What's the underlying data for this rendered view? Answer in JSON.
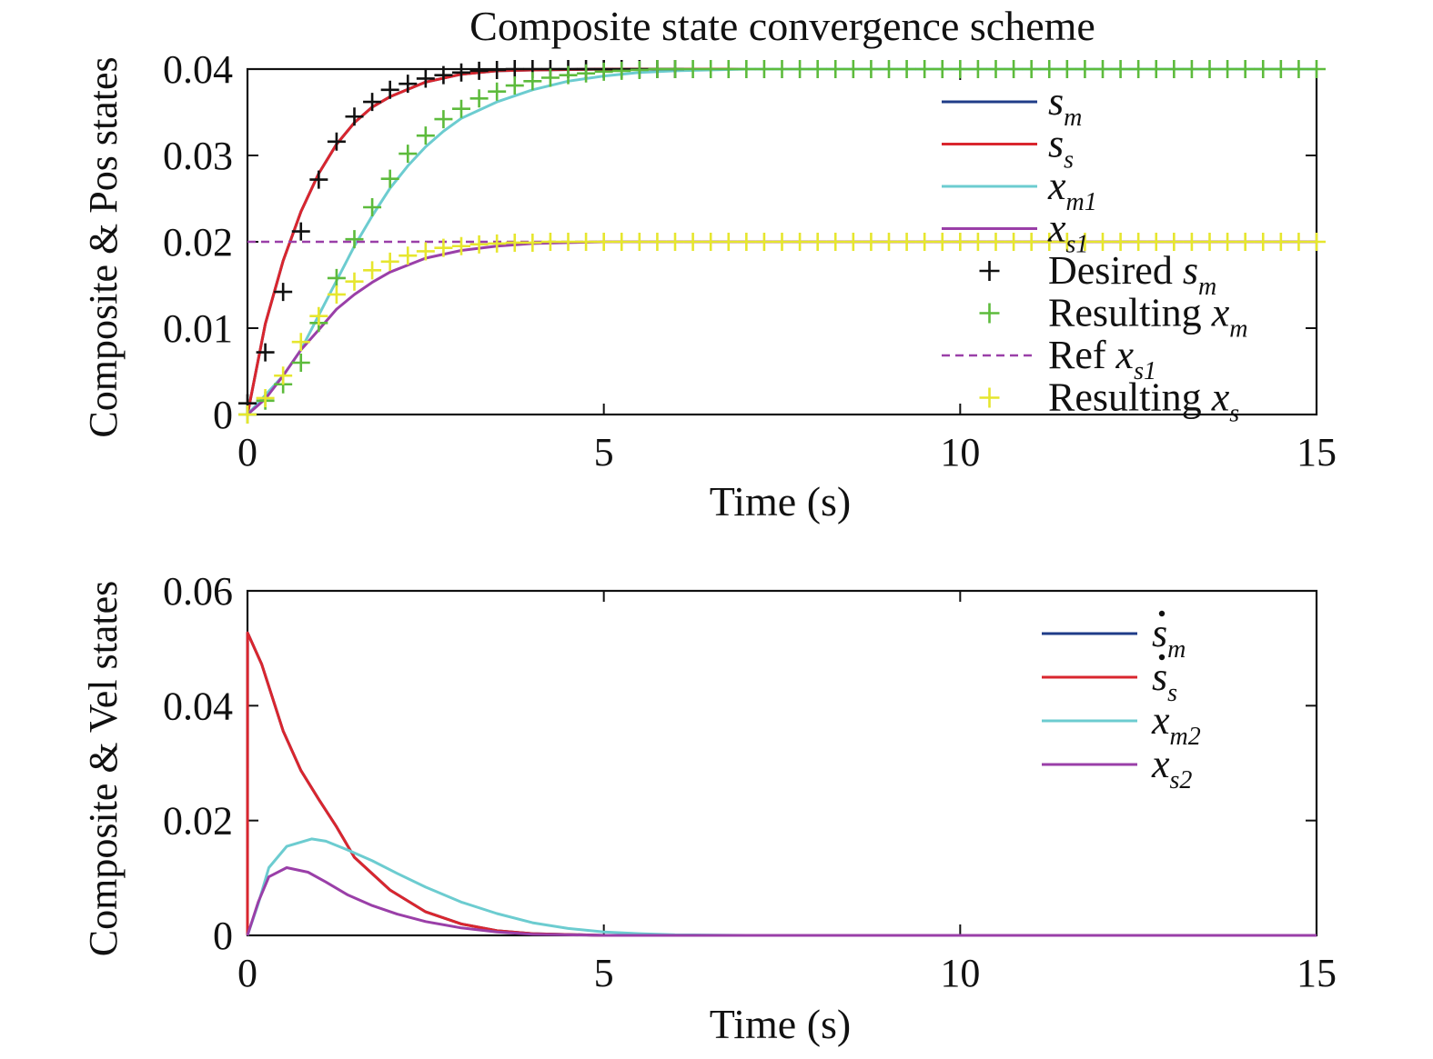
{
  "figure": {
    "title": "Composite state convergence scheme"
  },
  "chart_data": [
    {
      "type": "line",
      "title": "Composite state convergence scheme",
      "xlabel": "Time (s)",
      "ylabel": "Composite & Pos states",
      "xlim": [
        0,
        15
      ],
      "ylim": [
        0,
        0.04
      ],
      "xticks": [
        0,
        5,
        10,
        15
      ],
      "yticks": [
        0,
        0.01,
        0.02,
        0.03,
        0.04
      ],
      "xtick_labels": [
        "0",
        "5",
        "10",
        "15"
      ],
      "ytick_labels": [
        "0",
        "0.01",
        "0.02",
        "0.03",
        "0.04"
      ],
      "grid": false,
      "legend_position": "top-right",
      "series": [
        {
          "name": "s_m",
          "style": "line",
          "color": "#1f3c88",
          "x": [
            0,
            0.25,
            0.5,
            0.75,
            1,
            1.25,
            1.5,
            1.75,
            2,
            2.5,
            3,
            3.5,
            4,
            5,
            6,
            8,
            10,
            12,
            15
          ],
          "y": [
            0,
            0.0105,
            0.0178,
            0.0235,
            0.0279,
            0.0313,
            0.0338,
            0.0356,
            0.0368,
            0.0385,
            0.0394,
            0.0398,
            0.0399,
            0.04,
            0.04,
            0.04,
            0.04,
            0.04,
            0.04
          ]
        },
        {
          "name": "s_s",
          "style": "line",
          "color": "#d9262e",
          "x": [
            0,
            0.25,
            0.5,
            0.75,
            1,
            1.25,
            1.5,
            1.75,
            2,
            2.5,
            3,
            3.5,
            4,
            5,
            6,
            8,
            10,
            12,
            15
          ],
          "y": [
            0,
            0.0105,
            0.0178,
            0.0235,
            0.0279,
            0.0313,
            0.0338,
            0.0356,
            0.0368,
            0.0385,
            0.0394,
            0.0398,
            0.0399,
            0.04,
            0.04,
            0.04,
            0.04,
            0.04,
            0.04
          ]
        },
        {
          "name": "x_m1",
          "style": "line",
          "color": "#6cccd0",
          "x": [
            0,
            0.5,
            0.75,
            1,
            1.25,
            1.5,
            1.75,
            2,
            2.25,
            2.5,
            2.75,
            3,
            3.5,
            4,
            4.5,
            5,
            5.5,
            6,
            7,
            10,
            15
          ],
          "y": [
            0,
            0.0045,
            0.0075,
            0.0115,
            0.0155,
            0.0195,
            0.023,
            0.0262,
            0.0288,
            0.031,
            0.0328,
            0.0343,
            0.0362,
            0.0376,
            0.0386,
            0.0392,
            0.0396,
            0.0398,
            0.04,
            0.04,
            0.04
          ]
        },
        {
          "name": "x_s1",
          "style": "line",
          "color": "#9a3fa8",
          "x": [
            0,
            0.25,
            0.5,
            0.75,
            1,
            1.25,
            1.5,
            1.75,
            2,
            2.5,
            3,
            3.5,
            4,
            4.5,
            5,
            6,
            8,
            10,
            15
          ],
          "y": [
            0,
            0.0018,
            0.0045,
            0.0075,
            0.0098,
            0.0122,
            0.0139,
            0.0153,
            0.0165,
            0.0181,
            0.019,
            0.0195,
            0.0198,
            0.0199,
            0.02,
            0.02,
            0.02,
            0.02,
            0.02
          ]
        },
        {
          "name": "Desired s_m",
          "style": "marker",
          "color": "#111111",
          "x": [
            0,
            0.25,
            0.5,
            0.75,
            1,
            1.25,
            1.5,
            1.75,
            2,
            2.25,
            2.5,
            2.75,
            3,
            3.25,
            3.5,
            3.75,
            4,
            4.25,
            4.5,
            4.75,
            5,
            5.25,
            5.5,
            5.75,
            6
          ],
          "y": [
            0.0013,
            0.0072,
            0.0142,
            0.0212,
            0.0272,
            0.0316,
            0.0345,
            0.0362,
            0.0376,
            0.0383,
            0.0389,
            0.0393,
            0.0396,
            0.0398,
            0.0399,
            0.04,
            0.04,
            0.04,
            0.04,
            0.04,
            0.04,
            0.04,
            0.04,
            0.04,
            0.04
          ]
        },
        {
          "name": "Resulting x_m",
          "style": "marker",
          "color": "#5dbb3c",
          "x": [
            0,
            0.25,
            0.5,
            0.75,
            1,
            1.25,
            1.5,
            1.75,
            2,
            2.25,
            2.5,
            2.75,
            3,
            3.25,
            3.5,
            3.75,
            4,
            4.25,
            4.5,
            4.75,
            5,
            5.25,
            5.5,
            5.75,
            6,
            6.25,
            6.5,
            6.75,
            7,
            7.25,
            7.5,
            7.75,
            8,
            8.25,
            8.5,
            8.75,
            9,
            9.25,
            9.5,
            9.75,
            10,
            10.25,
            10.5,
            10.75,
            11,
            11.25,
            11.5,
            11.75,
            12,
            12.25,
            12.5,
            12.75,
            13,
            13.25,
            13.5,
            13.75,
            14,
            14.25,
            14.5,
            14.75,
            15
          ],
          "y": [
            0,
            0.0016,
            0.0035,
            0.006,
            0.0106,
            0.0158,
            0.0203,
            0.024,
            0.0273,
            0.0302,
            0.0323,
            0.0342,
            0.0354,
            0.0366,
            0.0374,
            0.0381,
            0.0386,
            0.039,
            0.0393,
            0.0395,
            0.0397,
            0.0398,
            0.0399,
            0.04,
            0.04,
            0.04,
            0.04,
            0.04,
            0.04,
            0.04,
            0.04,
            0.04,
            0.04,
            0.04,
            0.04,
            0.04,
            0.04,
            0.04,
            0.04,
            0.04,
            0.04,
            0.04,
            0.04,
            0.04,
            0.04,
            0.04,
            0.04,
            0.04,
            0.04,
            0.04,
            0.04,
            0.04,
            0.04,
            0.04,
            0.04,
            0.04,
            0.04,
            0.04,
            0.04,
            0.04,
            0.04
          ]
        },
        {
          "name": "Ref x_s1",
          "style": "dashed",
          "color": "#9a3fa8",
          "x": [
            0,
            15
          ],
          "y": [
            0.02,
            0.02
          ]
        },
        {
          "name": "Resulting x_s",
          "style": "marker",
          "color": "#e6e62e",
          "x": [
            0,
            0.25,
            0.5,
            0.75,
            1,
            1.25,
            1.5,
            1.75,
            2,
            2.25,
            2.5,
            2.75,
            3,
            3.25,
            3.5,
            3.75,
            4,
            4.25,
            4.5,
            4.75,
            5,
            5.25,
            5.5,
            5.75,
            6,
            6.25,
            6.5,
            6.75,
            7,
            7.25,
            7.5,
            7.75,
            8,
            8.25,
            8.5,
            8.75,
            9,
            9.25,
            9.5,
            9.75,
            10,
            10.25,
            10.5,
            10.75,
            11,
            11.25,
            11.5,
            11.75,
            12,
            12.25,
            12.5,
            12.75,
            13,
            13.25,
            13.5,
            13.75,
            14,
            14.25,
            14.5,
            14.75,
            15
          ],
          "y": [
            0,
            0.0019,
            0.0045,
            0.0084,
            0.0114,
            0.0139,
            0.0154,
            0.0167,
            0.0177,
            0.0184,
            0.0189,
            0.0193,
            0.0195,
            0.0197,
            0.0198,
            0.0199,
            0.0199,
            0.02,
            0.02,
            0.02,
            0.02,
            0.02,
            0.02,
            0.02,
            0.02,
            0.02,
            0.02,
            0.02,
            0.02,
            0.02,
            0.02,
            0.02,
            0.02,
            0.02,
            0.02,
            0.02,
            0.02,
            0.02,
            0.02,
            0.02,
            0.02,
            0.02,
            0.02,
            0.02,
            0.02,
            0.02,
            0.02,
            0.02,
            0.02,
            0.02,
            0.02,
            0.02,
            0.02,
            0.02,
            0.02,
            0.02,
            0.02,
            0.02,
            0.02,
            0.02,
            0.02
          ]
        }
      ],
      "legend": [
        {
          "series": 0,
          "base": "s",
          "sub": "m",
          "prefix": "",
          "dot": false
        },
        {
          "series": 1,
          "base": "s",
          "sub": "s",
          "prefix": "",
          "dot": false
        },
        {
          "series": 2,
          "base": "x",
          "sub": "m1",
          "prefix": "",
          "dot": false
        },
        {
          "series": 3,
          "base": "x",
          "sub": "s1",
          "prefix": "",
          "dot": false
        },
        {
          "series": 4,
          "base": "s",
          "sub": "m",
          "prefix": "Desired ",
          "dot": false
        },
        {
          "series": 5,
          "base": "x",
          "sub": "m",
          "prefix": "Resulting ",
          "dot": false
        },
        {
          "series": 6,
          "base": "x",
          "sub": "s1",
          "prefix": "Ref ",
          "dot": false
        },
        {
          "series": 7,
          "base": "x",
          "sub": "s",
          "prefix": "Resulting ",
          "dot": false
        }
      ]
    },
    {
      "type": "line",
      "title": "",
      "xlabel": "Time (s)",
      "ylabel": "Composite & Vel states",
      "xlim": [
        0,
        15
      ],
      "ylim": [
        0,
        0.06
      ],
      "xticks": [
        0,
        5,
        10,
        15
      ],
      "yticks": [
        0,
        0.02,
        0.04,
        0.06
      ],
      "xtick_labels": [
        "0",
        "5",
        "10",
        "15"
      ],
      "ytick_labels": [
        "0",
        "0.02",
        "0.04",
        "0.06"
      ],
      "grid": false,
      "legend_position": "top-right",
      "series": [
        {
          "name": "ṡ_m",
          "style": "line",
          "color": "#1f3c88",
          "x": [
            0,
            0.001,
            0.2,
            0.5,
            0.75,
            1,
            1.25,
            1.5,
            2,
            2.5,
            3,
            3.5,
            4,
            5,
            7,
            10,
            15
          ],
          "y": [
            0,
            0.0527,
            0.0472,
            0.0356,
            0.0287,
            0.0237,
            0.0189,
            0.0136,
            0.0079,
            0.0041,
            0.002,
            0.0008,
            0.0003,
            0,
            0,
            0,
            0
          ]
        },
        {
          "name": "ṡ_s",
          "style": "line",
          "color": "#d9262e",
          "x": [
            0,
            0.001,
            0.2,
            0.5,
            0.75,
            1,
            1.25,
            1.5,
            2,
            2.5,
            3,
            3.5,
            4,
            5,
            7,
            10,
            15
          ],
          "y": [
            0,
            0.0527,
            0.0472,
            0.0356,
            0.0287,
            0.0237,
            0.0189,
            0.0136,
            0.0079,
            0.0041,
            0.002,
            0.0008,
            0.0003,
            0,
            0,
            0,
            0
          ]
        },
        {
          "name": "x_m2",
          "style": "line",
          "color": "#6cccd0",
          "x": [
            0,
            0.15,
            0.3,
            0.55,
            0.9,
            1.1,
            1.4,
            1.75,
            2.1,
            2.5,
            3,
            3.5,
            4,
            4.5,
            5,
            5.5,
            6,
            7,
            10,
            15
          ],
          "y": [
            0,
            0.0055,
            0.0118,
            0.0155,
            0.0168,
            0.0164,
            0.0149,
            0.013,
            0.0108,
            0.0084,
            0.0058,
            0.0038,
            0.0022,
            0.0012,
            0.0006,
            0.0003,
            0.0001,
            0,
            0,
            0
          ]
        },
        {
          "name": "x_s2",
          "style": "line",
          "color": "#9a3fa8",
          "x": [
            0,
            0.15,
            0.3,
            0.55,
            0.85,
            1.1,
            1.4,
            1.75,
            2.1,
            2.5,
            3,
            3.5,
            4,
            4.5,
            5,
            7,
            10,
            15
          ],
          "y": [
            0,
            0.0058,
            0.0102,
            0.0118,
            0.011,
            0.0093,
            0.0071,
            0.0052,
            0.0037,
            0.0024,
            0.0013,
            0.0006,
            0.0002,
            0.0001,
            0,
            0,
            0,
            0
          ]
        }
      ],
      "legend": [
        {
          "series": 0,
          "base": "s",
          "sub": "m",
          "prefix": "",
          "dot": true
        },
        {
          "series": 1,
          "base": "s",
          "sub": "s",
          "prefix": "",
          "dot": true
        },
        {
          "series": 2,
          "base": "x",
          "sub": "m2",
          "prefix": "",
          "dot": false
        },
        {
          "series": 3,
          "base": "x",
          "sub": "s2",
          "prefix": "",
          "dot": false
        }
      ]
    }
  ]
}
